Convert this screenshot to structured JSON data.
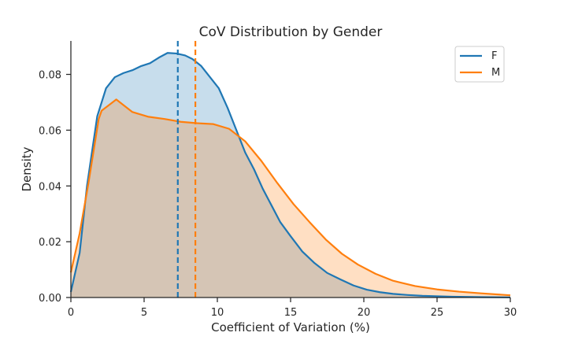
{
  "chart_data": {
    "type": "area",
    "title": "CoV Distribution by Gender",
    "xlabel": "Coefficient of Variation (%)",
    "ylabel": "Density",
    "xlim": [
      0,
      30
    ],
    "ylim": [
      0,
      0.092
    ],
    "xticks": [
      0,
      5,
      10,
      15,
      20,
      25,
      30
    ],
    "xtick_labels": [
      "0",
      "5",
      "10",
      "15",
      "20",
      "25",
      "30"
    ],
    "yticks": [
      0.0,
      0.02,
      0.04,
      0.06,
      0.08
    ],
    "ytick_labels": [
      "0.00",
      "0.02",
      "0.04",
      "0.06",
      "0.08"
    ],
    "grid": false,
    "legend_position": "top-right",
    "series": [
      {
        "name": "F",
        "color": "#1f77b4",
        "fill": "#c6dbee",
        "mean": 7.3,
        "points": [
          [
            0,
            0.002
          ],
          [
            0.6,
            0.016
          ],
          [
            1.1,
            0.04
          ],
          [
            1.8,
            0.065
          ],
          [
            2.4,
            0.075
          ],
          [
            3.0,
            0.079
          ],
          [
            3.6,
            0.0805
          ],
          [
            4.2,
            0.0815
          ],
          [
            4.8,
            0.083
          ],
          [
            5.4,
            0.084
          ],
          [
            6.0,
            0.086
          ],
          [
            6.6,
            0.0877
          ],
          [
            7.2,
            0.0875
          ],
          [
            7.8,
            0.0868
          ],
          [
            8.3,
            0.0855
          ],
          [
            8.9,
            0.083
          ],
          [
            9.5,
            0.079
          ],
          [
            10.1,
            0.075
          ],
          [
            10.7,
            0.068
          ],
          [
            11.3,
            0.06
          ],
          [
            11.9,
            0.052
          ],
          [
            12.5,
            0.046
          ],
          [
            13.1,
            0.039
          ],
          [
            13.7,
            0.033
          ],
          [
            14.3,
            0.027
          ],
          [
            15.0,
            0.022
          ],
          [
            15.8,
            0.0165
          ],
          [
            16.6,
            0.0125
          ],
          [
            17.5,
            0.0088
          ],
          [
            18.4,
            0.0065
          ],
          [
            19.3,
            0.0043
          ],
          [
            20.2,
            0.0028
          ],
          [
            21.1,
            0.0019
          ],
          [
            22.0,
            0.0013
          ],
          [
            23.0,
            0.0009
          ],
          [
            24.0,
            0.0006
          ],
          [
            26.0,
            0.0003
          ],
          [
            28.0,
            0.00015
          ],
          [
            30.0,
            5e-05
          ]
        ]
      },
      {
        "name": "M",
        "color": "#ff7f0e",
        "fill": "#ffd8b4",
        "mean": 8.5,
        "points": [
          [
            0,
            0.009
          ],
          [
            0.6,
            0.023
          ],
          [
            1.2,
            0.041
          ],
          [
            1.9,
            0.064
          ],
          [
            2.1,
            0.067
          ],
          [
            3.1,
            0.071
          ],
          [
            4.2,
            0.0665
          ],
          [
            5.3,
            0.0648
          ],
          [
            6.4,
            0.064
          ],
          [
            7.5,
            0.063
          ],
          [
            8.6,
            0.0625
          ],
          [
            9.7,
            0.0622
          ],
          [
            10.8,
            0.0605
          ],
          [
            11.9,
            0.056
          ],
          [
            13.0,
            0.049
          ],
          [
            14.1,
            0.041
          ],
          [
            15.2,
            0.0335
          ],
          [
            16.3,
            0.027
          ],
          [
            17.4,
            0.0208
          ],
          [
            18.5,
            0.0157
          ],
          [
            19.6,
            0.0118
          ],
          [
            20.8,
            0.0085
          ],
          [
            22.0,
            0.006
          ],
          [
            23.5,
            0.0041
          ],
          [
            25.0,
            0.0029
          ],
          [
            26.5,
            0.0021
          ],
          [
            28.0,
            0.0015
          ],
          [
            30.0,
            0.0008
          ]
        ]
      }
    ]
  }
}
